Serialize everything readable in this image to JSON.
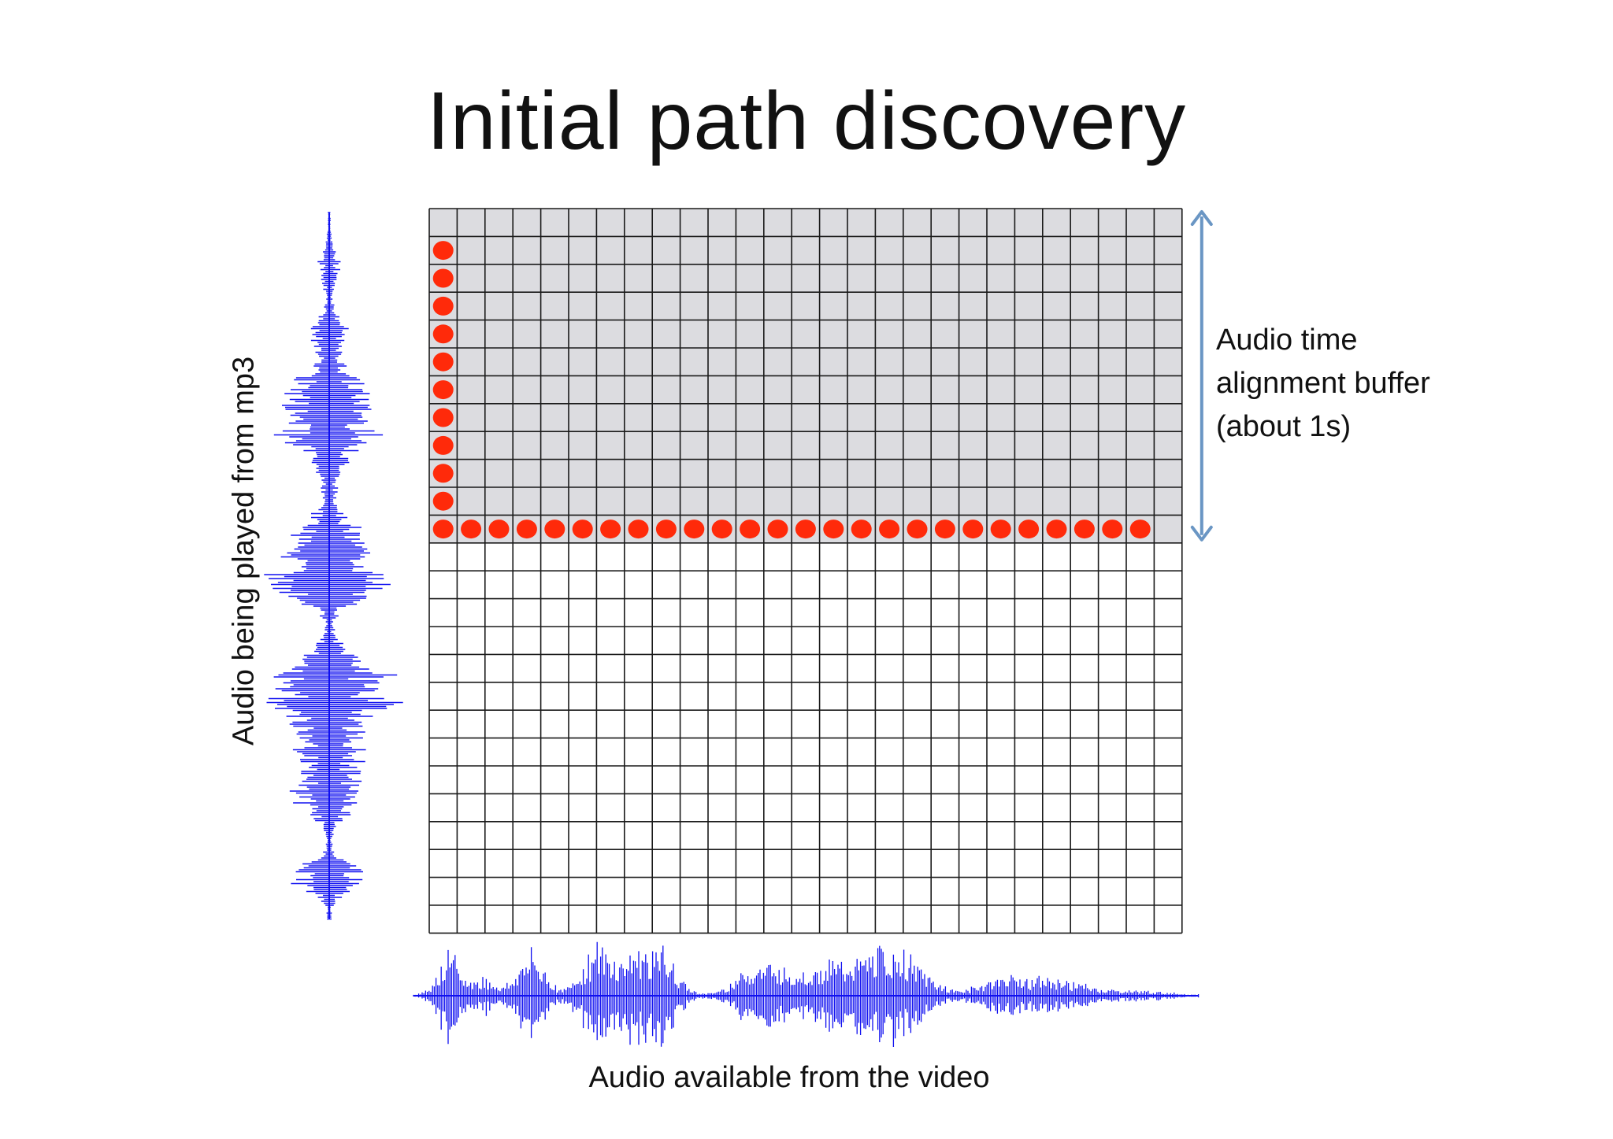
{
  "slide": {
    "title": "Initial path discovery"
  },
  "diagram": {
    "grid_columns": 27,
    "grid_rows": 26,
    "buffer_rows": 12,
    "buffer_label_lines": [
      "Audio time",
      "alignment buffer",
      "(about 1s)"
    ],
    "x_axis_label": "Audio available from the video",
    "y_axis_label": "Audio being played from mp3",
    "initial_path": {
      "vertical_dot_count": 11,
      "horizontal_dot_count": 26
    }
  },
  "colors": {
    "buffer_fill": "#dcdce0",
    "grid_line": "#1a1a1a",
    "path_dot": "#ff2a0a",
    "waveform": "#1010f0",
    "arrow": "#6a96c4"
  }
}
